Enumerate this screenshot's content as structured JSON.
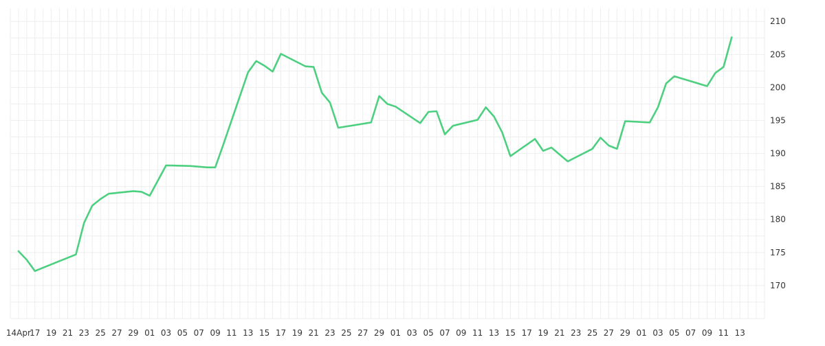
{
  "chart_data": {
    "type": "line",
    "title": "",
    "xlabel": "",
    "ylabel": "",
    "x_tick_labels": [
      "14Apr",
      "17",
      "19",
      "21",
      "23",
      "25",
      "27",
      "29",
      "01",
      "03",
      "05",
      "07",
      "09",
      "11",
      "13",
      "15",
      "17",
      "19",
      "21",
      "23",
      "25",
      "27",
      "29",
      "01",
      "03",
      "05",
      "07",
      "09",
      "11",
      "13",
      "15",
      "17",
      "19",
      "21",
      "23",
      "25",
      "27",
      "29",
      "01",
      "03",
      "05",
      "07",
      "09",
      "11",
      "13"
    ],
    "y_ticks": [
      170,
      175,
      180,
      185,
      190,
      195,
      200,
      205,
      210
    ],
    "ylim": [
      165,
      212
    ],
    "grid": true,
    "legend": "none",
    "colors": {
      "line": "#4cd080",
      "grid": "#eeeeee",
      "text": "#333333"
    },
    "series": [
      {
        "x": [
          "2025-04-14",
          "2025-04-15",
          "2025-04-16",
          "2025-04-17",
          "2025-04-21",
          "2025-04-22",
          "2025-04-23",
          "2025-04-24",
          "2025-04-25",
          "2025-04-28",
          "2025-04-29",
          "2025-04-30",
          "2025-05-02",
          "2025-05-05",
          "2025-05-06",
          "2025-05-07",
          "2025-05-08",
          "2025-05-09",
          "2025-05-12",
          "2025-05-13",
          "2025-05-14",
          "2025-05-15",
          "2025-05-16",
          "2025-05-19",
          "2025-05-20",
          "2025-05-21",
          "2025-05-22",
          "2025-05-23",
          "2025-05-27",
          "2025-05-28",
          "2025-05-29",
          "2025-05-30",
          "2025-06-02",
          "2025-06-03",
          "2025-06-04",
          "2025-06-05",
          "2025-06-06",
          "2025-06-09",
          "2025-06-10",
          "2025-06-11",
          "2025-06-12",
          "2025-06-13",
          "2025-06-16",
          "2025-06-17",
          "2025-06-18",
          "2025-06-20",
          "2025-06-23",
          "2025-06-24",
          "2025-06-25",
          "2025-06-26",
          "2025-06-27",
          "2025-06-30",
          "2025-07-01",
          "2025-07-02",
          "2025-07-03",
          "2025-07-07",
          "2025-07-08",
          "2025-07-09",
          "2025-07-10"
        ],
        "values": [
          175.2,
          173.9,
          172.2,
          172.7,
          174.7,
          179.5,
          182.1,
          183.1,
          183.9,
          184.3,
          184.2,
          183.6,
          188.2,
          188.1,
          188.0,
          187.9,
          187.9,
          191.4,
          202.3,
          204.0,
          203.3,
          202.4,
          205.1,
          203.2,
          203.1,
          199.2,
          197.7,
          193.9,
          194.7,
          198.7,
          197.5,
          197.1,
          194.6,
          196.3,
          196.4,
          192.9,
          194.2,
          195.1,
          197.0,
          195.6,
          193.2,
          189.6,
          192.2,
          190.4,
          190.9,
          188.8,
          190.7,
          192.4,
          191.2,
          190.7,
          194.9,
          194.7,
          197.0,
          200.6,
          201.7,
          200.2,
          202.2,
          203.1,
          207.6
        ]
      }
    ]
  }
}
